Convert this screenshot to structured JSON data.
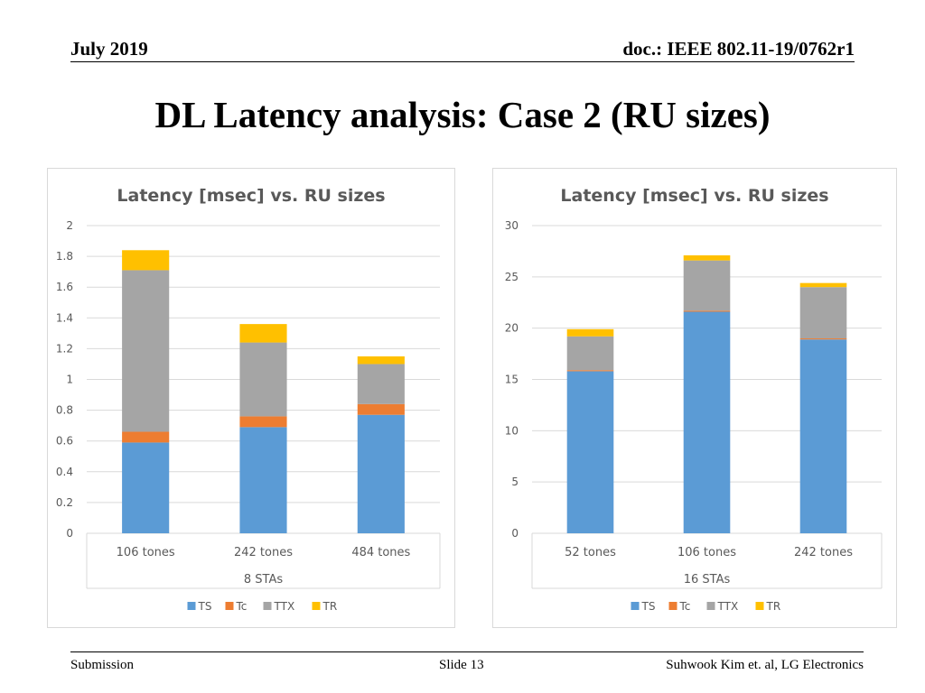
{
  "header": {
    "date": "July 2019",
    "doc": "doc.: IEEE 802.11-19/0762r1"
  },
  "slide": {
    "title": "DL Latency analysis: Case 2 (RU sizes)"
  },
  "footer": {
    "left": "Submission",
    "center": "Slide 13",
    "right": "Suhwook Kim et. al, LG Electronics"
  },
  "colors": {
    "TS": "#5b9bd5",
    "Tc": "#ed7d31",
    "TTX": "#a5a5a5",
    "TR": "#ffc000",
    "grid": "#d9d9d9",
    "axisText": "#595959"
  },
  "chart_data": [
    {
      "type": "bar",
      "stacked": true,
      "title": "Latency [msec] vs. RU sizes",
      "xlabel": "8 STAs",
      "ylabel": "",
      "categories": [
        "106 tones",
        "242 tones",
        "484 tones"
      ],
      "ylim": [
        0,
        2
      ],
      "yticks": [
        0,
        0.2,
        0.4,
        0.6,
        0.8,
        1,
        1.2,
        1.4,
        1.6,
        1.8,
        2
      ],
      "ytick_labels": [
        "0",
        "0.2",
        "0.4",
        "0.6",
        "0.8",
        "1",
        "1.2",
        "1.4",
        "1.6",
        "1.8",
        "2"
      ],
      "series": [
        {
          "name": "TS",
          "values": [
            0.59,
            0.69,
            0.77
          ]
        },
        {
          "name": "Tc",
          "values": [
            0.07,
            0.07,
            0.07
          ]
        },
        {
          "name": "TTX",
          "values": [
            1.05,
            0.48,
            0.26
          ]
        },
        {
          "name": "TR",
          "values": [
            0.13,
            0.12,
            0.05
          ]
        }
      ],
      "legend": [
        "TS",
        "Tc",
        "TTX",
        "TR"
      ],
      "legend_position": "bottom"
    },
    {
      "type": "bar",
      "stacked": true,
      "title": "Latency [msec] vs. RU sizes",
      "xlabel": "16 STAs",
      "ylabel": "",
      "categories": [
        "52 tones",
        "106 tones",
        "242 tones"
      ],
      "ylim": [
        0,
        30
      ],
      "yticks": [
        0,
        5,
        10,
        15,
        20,
        25,
        30
      ],
      "ytick_labels": [
        "0",
        "5",
        "10",
        "15",
        "20",
        "25",
        "30"
      ],
      "series": [
        {
          "name": "TS",
          "values": [
            15.8,
            21.6,
            18.9
          ]
        },
        {
          "name": "Tc",
          "values": [
            0.1,
            0.1,
            0.1
          ]
        },
        {
          "name": "TTX",
          "values": [
            3.3,
            4.9,
            5.0
          ]
        },
        {
          "name": "TR",
          "values": [
            0.7,
            0.5,
            0.4
          ]
        }
      ],
      "legend": [
        "TS",
        "Tc",
        "TTX",
        "TR"
      ],
      "legend_position": "bottom"
    }
  ]
}
